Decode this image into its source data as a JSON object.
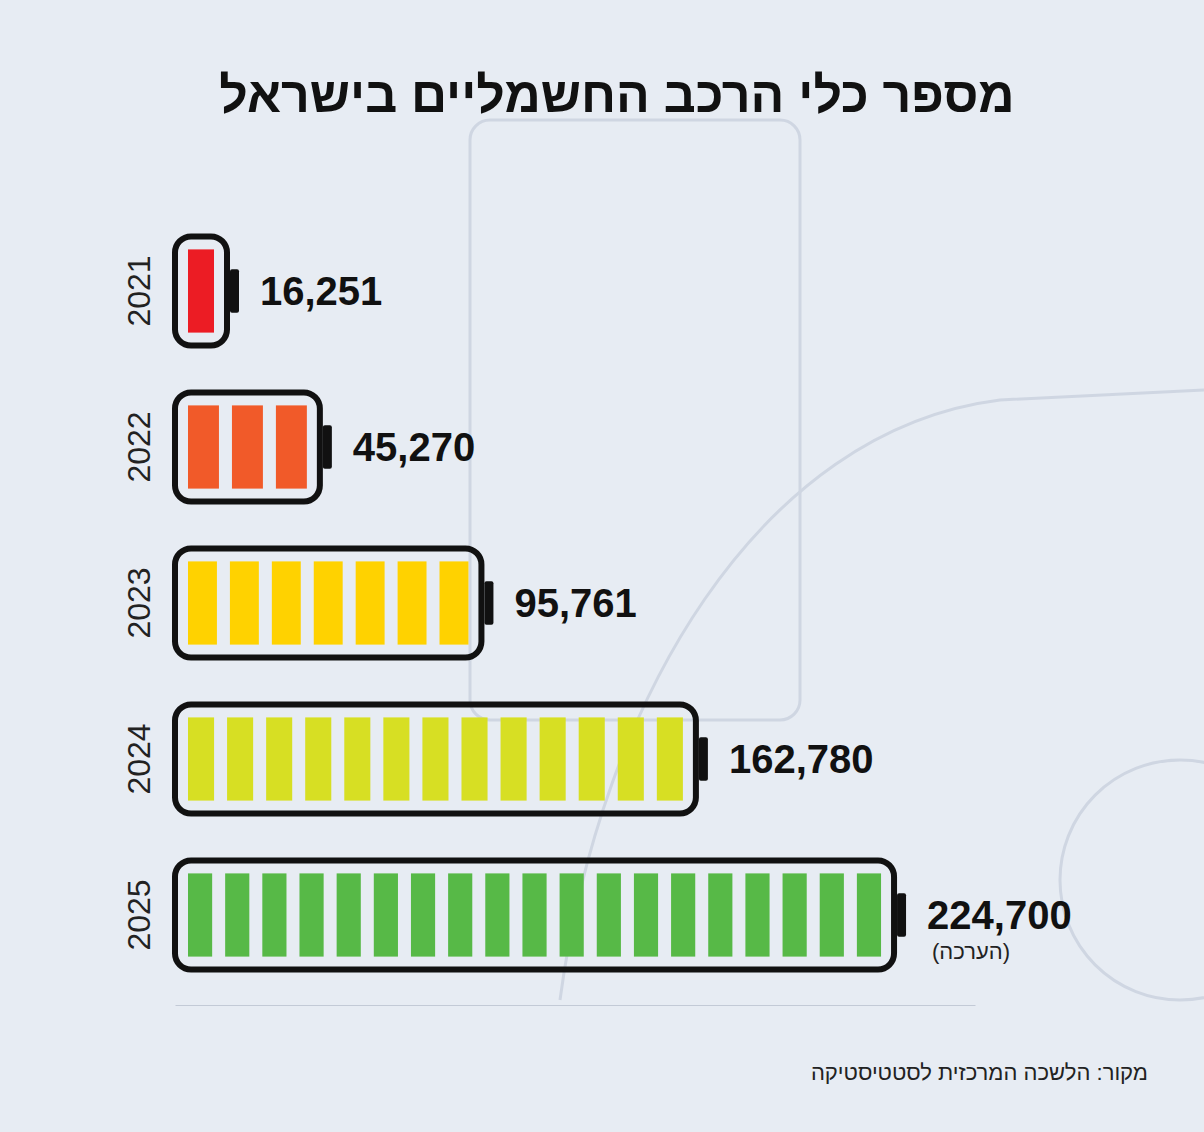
{
  "chart_data": {
    "type": "bar",
    "title": "מספר כלי הרכב החשמליים בישראל",
    "orientation": "horizontal",
    "categories": [
      "2021",
      "2022",
      "2023",
      "2024",
      "2025"
    ],
    "values": [
      16251,
      45270,
      95761,
      162780,
      224700
    ],
    "value_labels": [
      "16,251",
      "45,270",
      "95,761",
      "162,780",
      "224,700"
    ],
    "colors": [
      "#ec1c24",
      "#f15a29",
      "#ffd200",
      "#d7df23",
      "#57b947"
    ],
    "xlim": [
      0,
      250000
    ],
    "data_labels": true,
    "tick_labels": "y",
    "grid": false,
    "annotations": [
      {
        "category": "2025",
        "text": "(הערכה)"
      }
    ],
    "source": "מקור: הלשכה המרכזית לסטטיסטיקה"
  }
}
